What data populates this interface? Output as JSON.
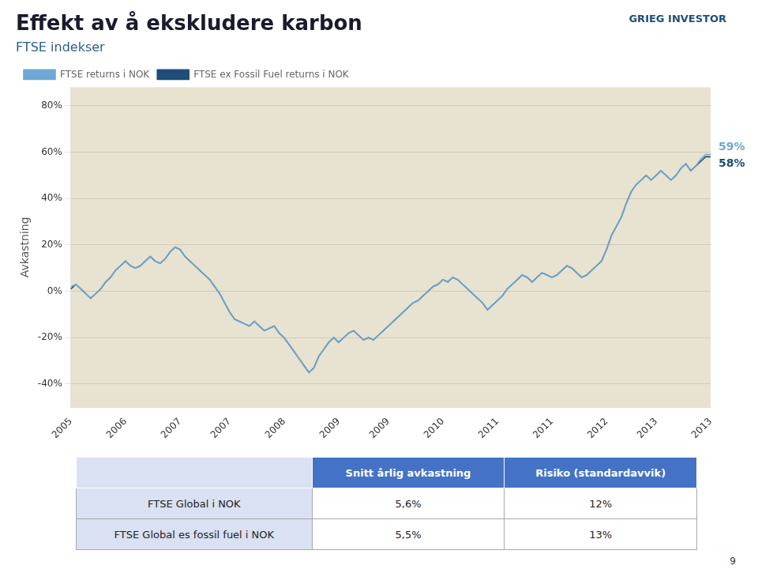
{
  "chart_data": {
    "type": "line",
    "title": "Effekt av å ekskludere karbon",
    "subtitle": "FTSE indekser",
    "title_color": "#1a1a2e",
    "subtitle_color": "#2e5f8a",
    "y_label": "Avkastning",
    "background": "#e8e2d0",
    "grid": "y",
    "legend": "upper left",
    "ylim": [
      -0.5,
      0.88
    ],
    "yticks": [
      {
        "value": -0.4,
        "label": "-40%"
      },
      {
        "value": -0.2,
        "label": "-20%"
      },
      {
        "value": 0.0,
        "label": "0%"
      },
      {
        "value": 0.2,
        "label": "20%"
      },
      {
        "value": 0.4,
        "label": "40%"
      },
      {
        "value": 0.6,
        "label": "60%"
      },
      {
        "value": 0.8,
        "label": "80%"
      }
    ],
    "categories": [
      "2005",
      null,
      null,
      null,
      null,
      null,
      null,
      null,
      null,
      null,
      null,
      "2006",
      null,
      null,
      null,
      null,
      null,
      null,
      null,
      null,
      null,
      null,
      "2007",
      null,
      null,
      null,
      null,
      null,
      null,
      null,
      null,
      null,
      "2007",
      null,
      null,
      null,
      null,
      null,
      null,
      null,
      null,
      null,
      null,
      "2008",
      null,
      null,
      null,
      null,
      null,
      null,
      null,
      null,
      null,
      null,
      "2009",
      null,
      null,
      null,
      null,
      null,
      null,
      null,
      null,
      null,
      "2009",
      null,
      null,
      null,
      null,
      null,
      null,
      null,
      null,
      null,
      null,
      "2010",
      null,
      null,
      null,
      null,
      null,
      null,
      null,
      null,
      null,
      null,
      "2011",
      null,
      null,
      null,
      null,
      null,
      null,
      null,
      null,
      null,
      null,
      "2011",
      null,
      null,
      null,
      null,
      null,
      null,
      null,
      null,
      null,
      null,
      "2012",
      null,
      null,
      null,
      null,
      null,
      null,
      null,
      null,
      null,
      "2013",
      null,
      null,
      null,
      null,
      null,
      null,
      null,
      null,
      null,
      null,
      "2013"
    ],
    "series": [
      {
        "name": "FTSE returns i NOK",
        "color": "#6fa8d4",
        "values": [
          0.02,
          0.03,
          0.01,
          -0.01,
          -0.03,
          -0.01,
          0.01,
          0.04,
          0.06,
          0.09,
          0.11,
          0.13,
          0.11,
          0.1,
          0.11,
          0.13,
          0.15,
          0.13,
          0.12,
          0.14,
          0.17,
          0.19,
          0.18,
          0.15,
          0.13,
          0.11,
          0.09,
          0.07,
          0.05,
          0.02,
          -0.01,
          -0.05,
          -0.09,
          -0.12,
          -0.13,
          -0.14,
          -0.15,
          -0.13,
          -0.15,
          -0.17,
          -0.16,
          -0.15,
          -0.18,
          -0.2,
          -0.23,
          -0.26,
          -0.29,
          -0.32,
          -0.35,
          -0.33,
          -0.28,
          -0.25,
          -0.22,
          -0.2,
          -0.22,
          -0.2,
          -0.18,
          -0.17,
          -0.19,
          -0.21,
          -0.2,
          -0.21,
          -0.19,
          -0.17,
          -0.15,
          -0.13,
          -0.11,
          -0.09,
          -0.07,
          -0.05,
          -0.04,
          -0.02,
          0.0,
          0.02,
          0.03,
          0.05,
          0.04,
          0.06,
          0.05,
          0.03,
          0.01,
          -0.01,
          -0.03,
          -0.05,
          -0.08,
          -0.06,
          -0.04,
          -0.02,
          0.01,
          0.03,
          0.05,
          0.07,
          0.06,
          0.04,
          0.06,
          0.08,
          0.07,
          0.06,
          0.07,
          0.09,
          0.11,
          0.1,
          0.08,
          0.06,
          0.07,
          0.09,
          0.11,
          0.13,
          0.18,
          0.24,
          0.28,
          0.32,
          0.38,
          0.43,
          0.46,
          0.48,
          0.5,
          0.48,
          0.5,
          0.52,
          0.5,
          0.48,
          0.5,
          0.53,
          0.55,
          0.52,
          0.54,
          0.57,
          0.59,
          0.59
        ]
      },
      {
        "name": "FTSE ex Fossil Fuel returns i NOK",
        "color": "#1f4e79",
        "values": [
          0.01,
          0.03,
          0.01,
          -0.01,
          -0.03,
          -0.01,
          0.01,
          0.04,
          0.06,
          0.09,
          0.11,
          0.13,
          0.11,
          0.1,
          0.11,
          0.13,
          0.15,
          0.13,
          0.12,
          0.14,
          0.17,
          0.19,
          0.18,
          0.15,
          0.13,
          0.11,
          0.09,
          0.07,
          0.05,
          0.02,
          -0.01,
          -0.05,
          -0.09,
          -0.12,
          -0.13,
          -0.14,
          -0.15,
          -0.13,
          -0.15,
          -0.17,
          -0.16,
          -0.15,
          -0.18,
          -0.2,
          -0.23,
          -0.26,
          -0.29,
          -0.32,
          -0.35,
          -0.33,
          -0.28,
          -0.25,
          -0.22,
          -0.2,
          -0.22,
          -0.2,
          -0.18,
          -0.17,
          -0.19,
          -0.21,
          -0.2,
          -0.21,
          -0.19,
          -0.17,
          -0.15,
          -0.13,
          -0.11,
          -0.09,
          -0.07,
          -0.05,
          -0.04,
          -0.02,
          0.0,
          0.02,
          0.03,
          0.05,
          0.04,
          0.06,
          0.05,
          0.03,
          0.01,
          -0.01,
          -0.03,
          -0.05,
          -0.08,
          -0.06,
          -0.04,
          -0.02,
          0.01,
          0.03,
          0.05,
          0.07,
          0.06,
          0.04,
          0.06,
          0.08,
          0.07,
          0.06,
          0.07,
          0.09,
          0.11,
          0.1,
          0.08,
          0.06,
          0.07,
          0.09,
          0.11,
          0.13,
          0.18,
          0.24,
          0.28,
          0.32,
          0.38,
          0.43,
          0.46,
          0.48,
          0.5,
          0.48,
          0.5,
          0.52,
          0.5,
          0.48,
          0.5,
          0.53,
          0.55,
          0.52,
          0.54,
          0.56,
          0.58,
          0.58
        ]
      }
    ],
    "annotations": [
      {
        "text": "59%",
        "series": "FTSE returns i NOK",
        "color": "#6fa8d4"
      },
      {
        "text": "58%",
        "series": "FTSE ex Fossil Fuel returns i NOK",
        "color": "#1f4e79"
      }
    ],
    "logo": {
      "text": "GRIEG INVESTOR",
      "color": "#1f4e79"
    },
    "table": {
      "headers": [
        "Snitt årlig avkastning",
        "Risiko (standardavvik)"
      ],
      "rows": [
        [
          "FTSE Global i NOK",
          "5,6%",
          "12%"
        ],
        [
          "FTSE Global es fossil fuel i NOK",
          "5,5%",
          "13%"
        ]
      ],
      "header_bg": "#4472c4",
      "header_fg": "#ffffff",
      "first_col_bg": "#d9e1f2",
      "cell_bg": "#ffffff"
    },
    "page_number": "9"
  }
}
